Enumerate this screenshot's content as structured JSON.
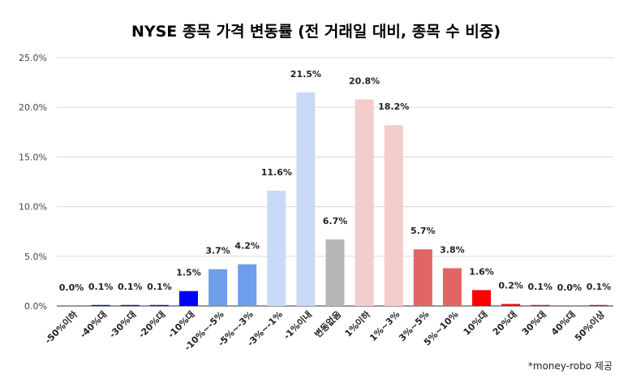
{
  "chart_data": {
    "type": "bar",
    "title": "NYSE 종목 가격 변동률 (전 거래일 대비, 종목 수 비중)",
    "credit": "*money-robo 제공",
    "xlabel": "",
    "ylabel": "",
    "ylim": [
      0,
      25
    ],
    "yticks": [
      "0.0%",
      "5.0%",
      "10.0%",
      "15.0%",
      "20.0%",
      "25.0%"
    ],
    "grid": true,
    "categories": [
      "-50%이하",
      "-40%대",
      "-30%대",
      "-20%대",
      "-10%대",
      "-10%~-5%",
      "-5%~-3%",
      "-3%~-1%",
      "-1%이내",
      "변동없음",
      "1%이하",
      "1%~3%",
      "3%~5%",
      "5%~10%",
      "10%대",
      "20%대",
      "30%대",
      "40%대",
      "50%이상"
    ],
    "values": [
      0.0,
      0.1,
      0.1,
      0.1,
      1.5,
      3.7,
      4.2,
      11.6,
      21.5,
      6.7,
      20.8,
      18.2,
      5.7,
      3.8,
      1.6,
      0.2,
      0.1,
      0.0,
      0.1
    ],
    "labels": [
      "0.0%",
      "0.1%",
      "0.1%",
      "0.1%",
      "1.5%",
      "3.7%",
      "4.2%",
      "11.6%",
      "21.5%",
      "6.7%",
      "20.8%",
      "18.2%",
      "5.7%",
      "3.8%",
      "1.6%",
      "0.2%",
      "0.1%",
      "0.0%",
      "0.1%"
    ],
    "colors": [
      "#0000ff",
      "#0000ff",
      "#0000ff",
      "#0000ff",
      "#0000ff",
      "#6d9eeb",
      "#6d9eeb",
      "#c9daf8",
      "#c9daf8",
      "#b7b7b7",
      "#f4cccc",
      "#f4cccc",
      "#e06666",
      "#e06666",
      "#ff0000",
      "#ff0000",
      "#ff0000",
      "#ff0000",
      "#ff0000"
    ]
  }
}
